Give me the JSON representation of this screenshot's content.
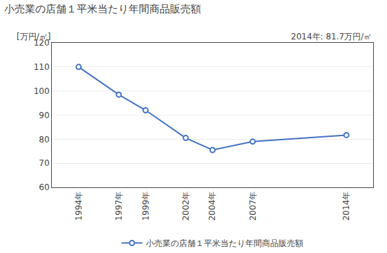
{
  "chart_data": {
    "type": "line",
    "title": "小売業の店舗１平米当たり年間商品販売額",
    "ylabel": "[万円/㎡]",
    "annotation": "2014年: 81.7万円/㎡",
    "x": [
      1994,
      1997,
      1999,
      2002,
      2004,
      2007,
      2014
    ],
    "series": [
      {
        "name": "小売業の店舗１平米当たり年間商品販売額",
        "color": "#4472C4",
        "marker": "circle",
        "values": [
          110.0,
          98.5,
          92.0,
          80.5,
          75.5,
          79.0,
          81.7
        ]
      }
    ],
    "xlim": [
      1992,
      2016
    ],
    "xticks": [
      {
        "value": 1994,
        "label": "1994年"
      },
      {
        "value": 1997,
        "label": "1997年"
      },
      {
        "value": 1999,
        "label": "1999年"
      },
      {
        "value": 2002,
        "label": "2002年"
      },
      {
        "value": 2004,
        "label": "2004年"
      },
      {
        "value": 2007,
        "label": "2007年"
      },
      {
        "value": 2014,
        "label": "2014年"
      }
    ],
    "ylim": [
      60,
      120
    ],
    "yticks": [
      60,
      70,
      80,
      90,
      100,
      110,
      120
    ],
    "grid": "y",
    "legend": "bottom"
  }
}
